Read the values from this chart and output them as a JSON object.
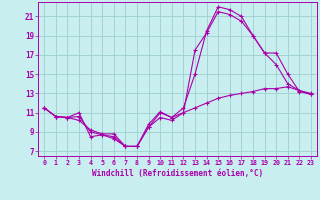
{
  "xlabel": "Windchill (Refroidissement éolien,°C)",
  "xlim": [
    -0.5,
    23.5
  ],
  "ylim": [
    6.5,
    22.5
  ],
  "yticks": [
    7,
    9,
    11,
    13,
    15,
    17,
    19,
    21
  ],
  "xticks": [
    0,
    1,
    2,
    3,
    4,
    5,
    6,
    7,
    8,
    9,
    10,
    11,
    12,
    13,
    14,
    15,
    16,
    17,
    18,
    19,
    20,
    21,
    22,
    23
  ],
  "bg_color": "#c8eef0",
  "line_color": "#aa00aa",
  "grid_color": "#9ecece",
  "series": [
    {
      "x": [
        0,
        1,
        2,
        3,
        4,
        5,
        6,
        7,
        8,
        9,
        10,
        11,
        12,
        13,
        14,
        15,
        16,
        17,
        18,
        19,
        20,
        21,
        22,
        23
      ],
      "y": [
        11.5,
        10.6,
        10.5,
        11.0,
        8.5,
        8.7,
        8.3,
        7.5,
        7.5,
        9.8,
        11.1,
        10.5,
        11.5,
        15.0,
        19.5,
        22.0,
        21.7,
        21.0,
        19.0,
        17.2,
        17.2,
        15.0,
        13.2,
        12.9
      ]
    },
    {
      "x": [
        0,
        1,
        2,
        3,
        4,
        5,
        6,
        7,
        8,
        9,
        10,
        11,
        12,
        13,
        14,
        15,
        16,
        17,
        18,
        19,
        20,
        21,
        22,
        23
      ],
      "y": [
        11.5,
        10.6,
        10.5,
        10.6,
        9.0,
        8.7,
        8.5,
        7.5,
        7.5,
        9.5,
        11.0,
        10.5,
        11.0,
        17.5,
        19.3,
        21.5,
        21.2,
        20.5,
        19.0,
        17.2,
        16.0,
        14.0,
        13.3,
        12.9
      ]
    },
    {
      "x": [
        0,
        1,
        2,
        3,
        4,
        5,
        6,
        7,
        8,
        9,
        10,
        11,
        12,
        13,
        14,
        15,
        16,
        17,
        18,
        19,
        20,
        21,
        22,
        23
      ],
      "y": [
        11.5,
        10.6,
        10.5,
        10.2,
        9.2,
        8.8,
        8.8,
        7.5,
        7.5,
        9.5,
        10.5,
        10.2,
        11.0,
        11.5,
        12.0,
        12.5,
        12.8,
        13.0,
        13.2,
        13.5,
        13.5,
        13.7,
        13.3,
        13.0
      ]
    }
  ]
}
